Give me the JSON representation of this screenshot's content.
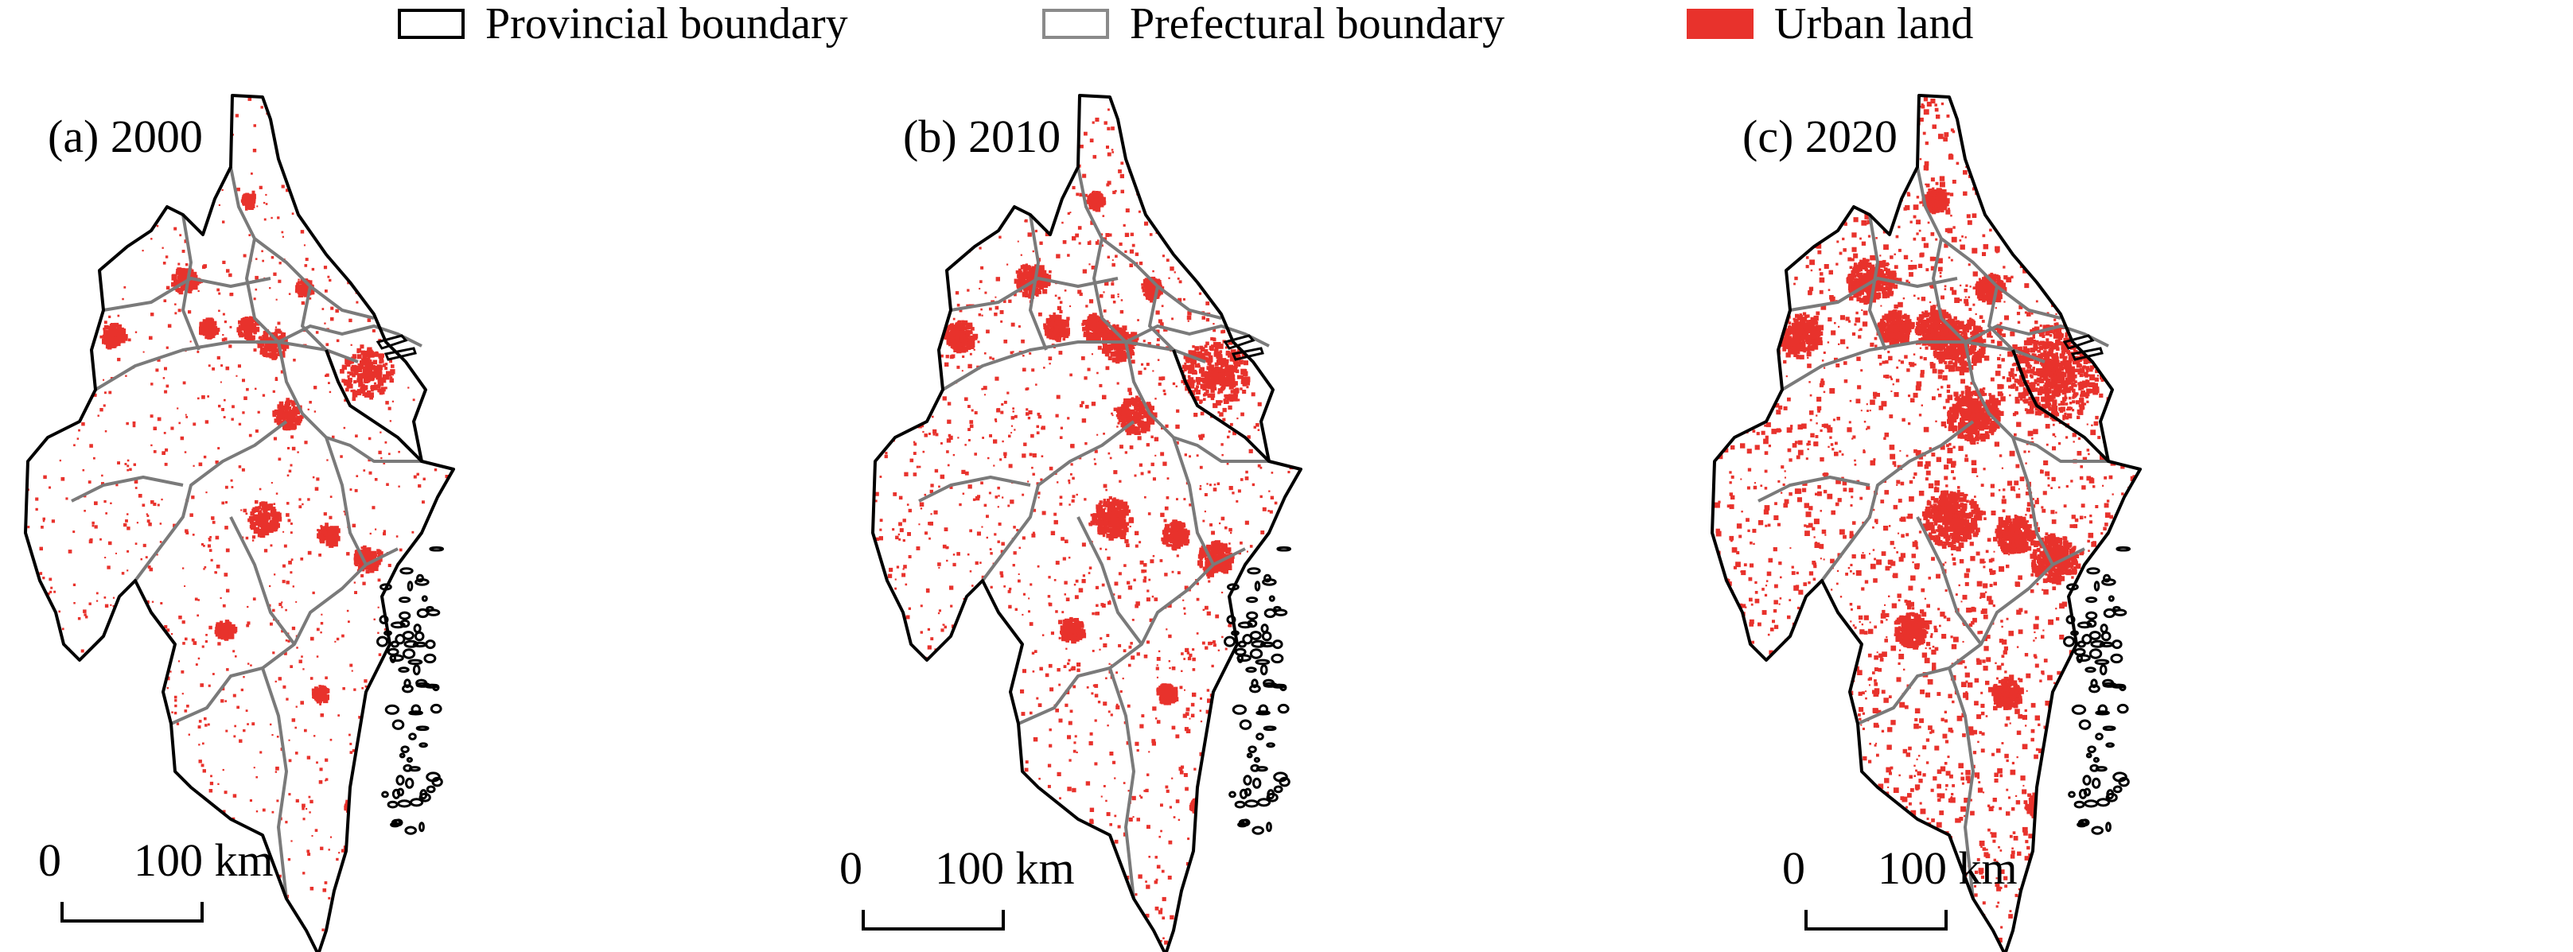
{
  "legend": {
    "items": [
      {
        "label": "Provincial boundary",
        "stroke": "#000000",
        "fill": "#ffffff"
      },
      {
        "label": "Prefectural boundary",
        "stroke": "#8a8a8a",
        "fill": "#ffffff"
      },
      {
        "label": "Urban land",
        "stroke": "#e8322c",
        "fill": "#e8322c"
      }
    ]
  },
  "colors": {
    "provincial": "#000000",
    "prefectural": "#7a7a7a",
    "urban": "#e8322c",
    "land": "#ffffff"
  },
  "panels": [
    {
      "title": "(a) 2000",
      "urban_level": 0.25
    },
    {
      "title": "(b) 2010",
      "urban_level": 0.5
    },
    {
      "title": "(c) 2020",
      "urban_level": 1.0
    }
  ],
  "scalebar": {
    "zero": "0",
    "distance": "100 km"
  }
}
